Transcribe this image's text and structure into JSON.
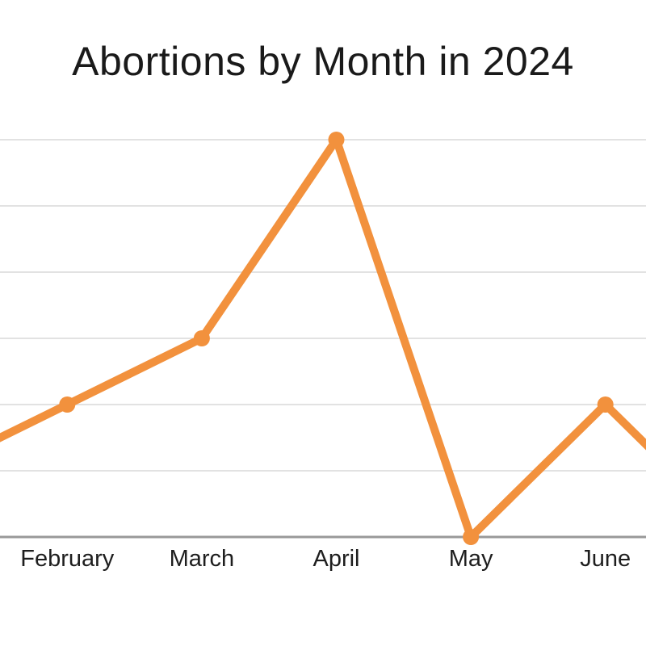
{
  "chart_data": {
    "type": "line",
    "title": "Abortions by Month in 2024",
    "categories": [
      "February",
      "March",
      "April",
      "May",
      "June"
    ],
    "values": [
      2,
      3,
      6,
      0,
      2
    ],
    "offscreen": {
      "january_value": 1,
      "july_value": 0
    },
    "ylim": [
      0,
      6
    ],
    "yaxis_tick_labels": "none",
    "grid": {
      "horizontal_lines": 6,
      "vertical_lines": 0
    },
    "legend": "none",
    "markers": "filled-circle",
    "colors": {
      "line": "#F2913D",
      "marker": "#F2913D",
      "gridline": "#D9D9D9",
      "axis_line": "#999999",
      "title_text": "#1A1A1A",
      "label_text": "#1E1E1E",
      "background": "#FFFFFF"
    }
  }
}
